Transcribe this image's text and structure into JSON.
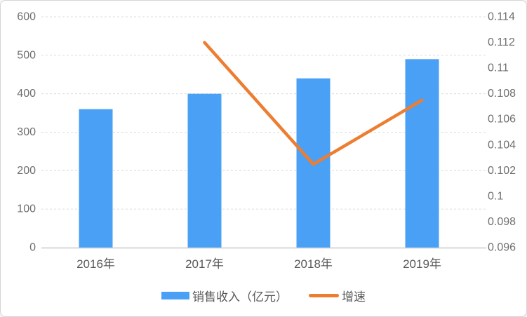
{
  "chart_data": {
    "type": "combo",
    "title": "",
    "categories": [
      "2016年",
      "2017年",
      "2018年",
      "2019年"
    ],
    "series": [
      {
        "name": "销售收入（亿元）",
        "type": "bar",
        "axis": "left",
        "color": "#4AA0F5",
        "values": [
          360,
          400,
          440,
          490
        ]
      },
      {
        "name": "增速",
        "type": "line",
        "axis": "right",
        "color": "#ED7D31",
        "values": [
          null,
          0.112,
          0.1025,
          0.1075
        ]
      }
    ],
    "left_axis": {
      "min": 0,
      "max": 600,
      "step": 100,
      "tick_labels": [
        "0",
        "100",
        "200",
        "300",
        "400",
        "500",
        "600"
      ]
    },
    "right_axis": {
      "min": 0.096,
      "max": 0.114,
      "step": 0.002,
      "tick_labels": [
        "0.096",
        "0.098",
        "0.1",
        "0.102",
        "0.104",
        "0.106",
        "0.108",
        "0.11",
        "0.112",
        "0.114"
      ]
    },
    "grid": true,
    "legend_position": "bottom"
  },
  "colors": {
    "background": "#ffffff",
    "border": "#d5d5d5",
    "gridline": "#dcdcdc",
    "axis_line": "#d9d9d9",
    "tick_text": "#6f6f6f",
    "category_text": "#595959",
    "legend_text": "#595959"
  }
}
